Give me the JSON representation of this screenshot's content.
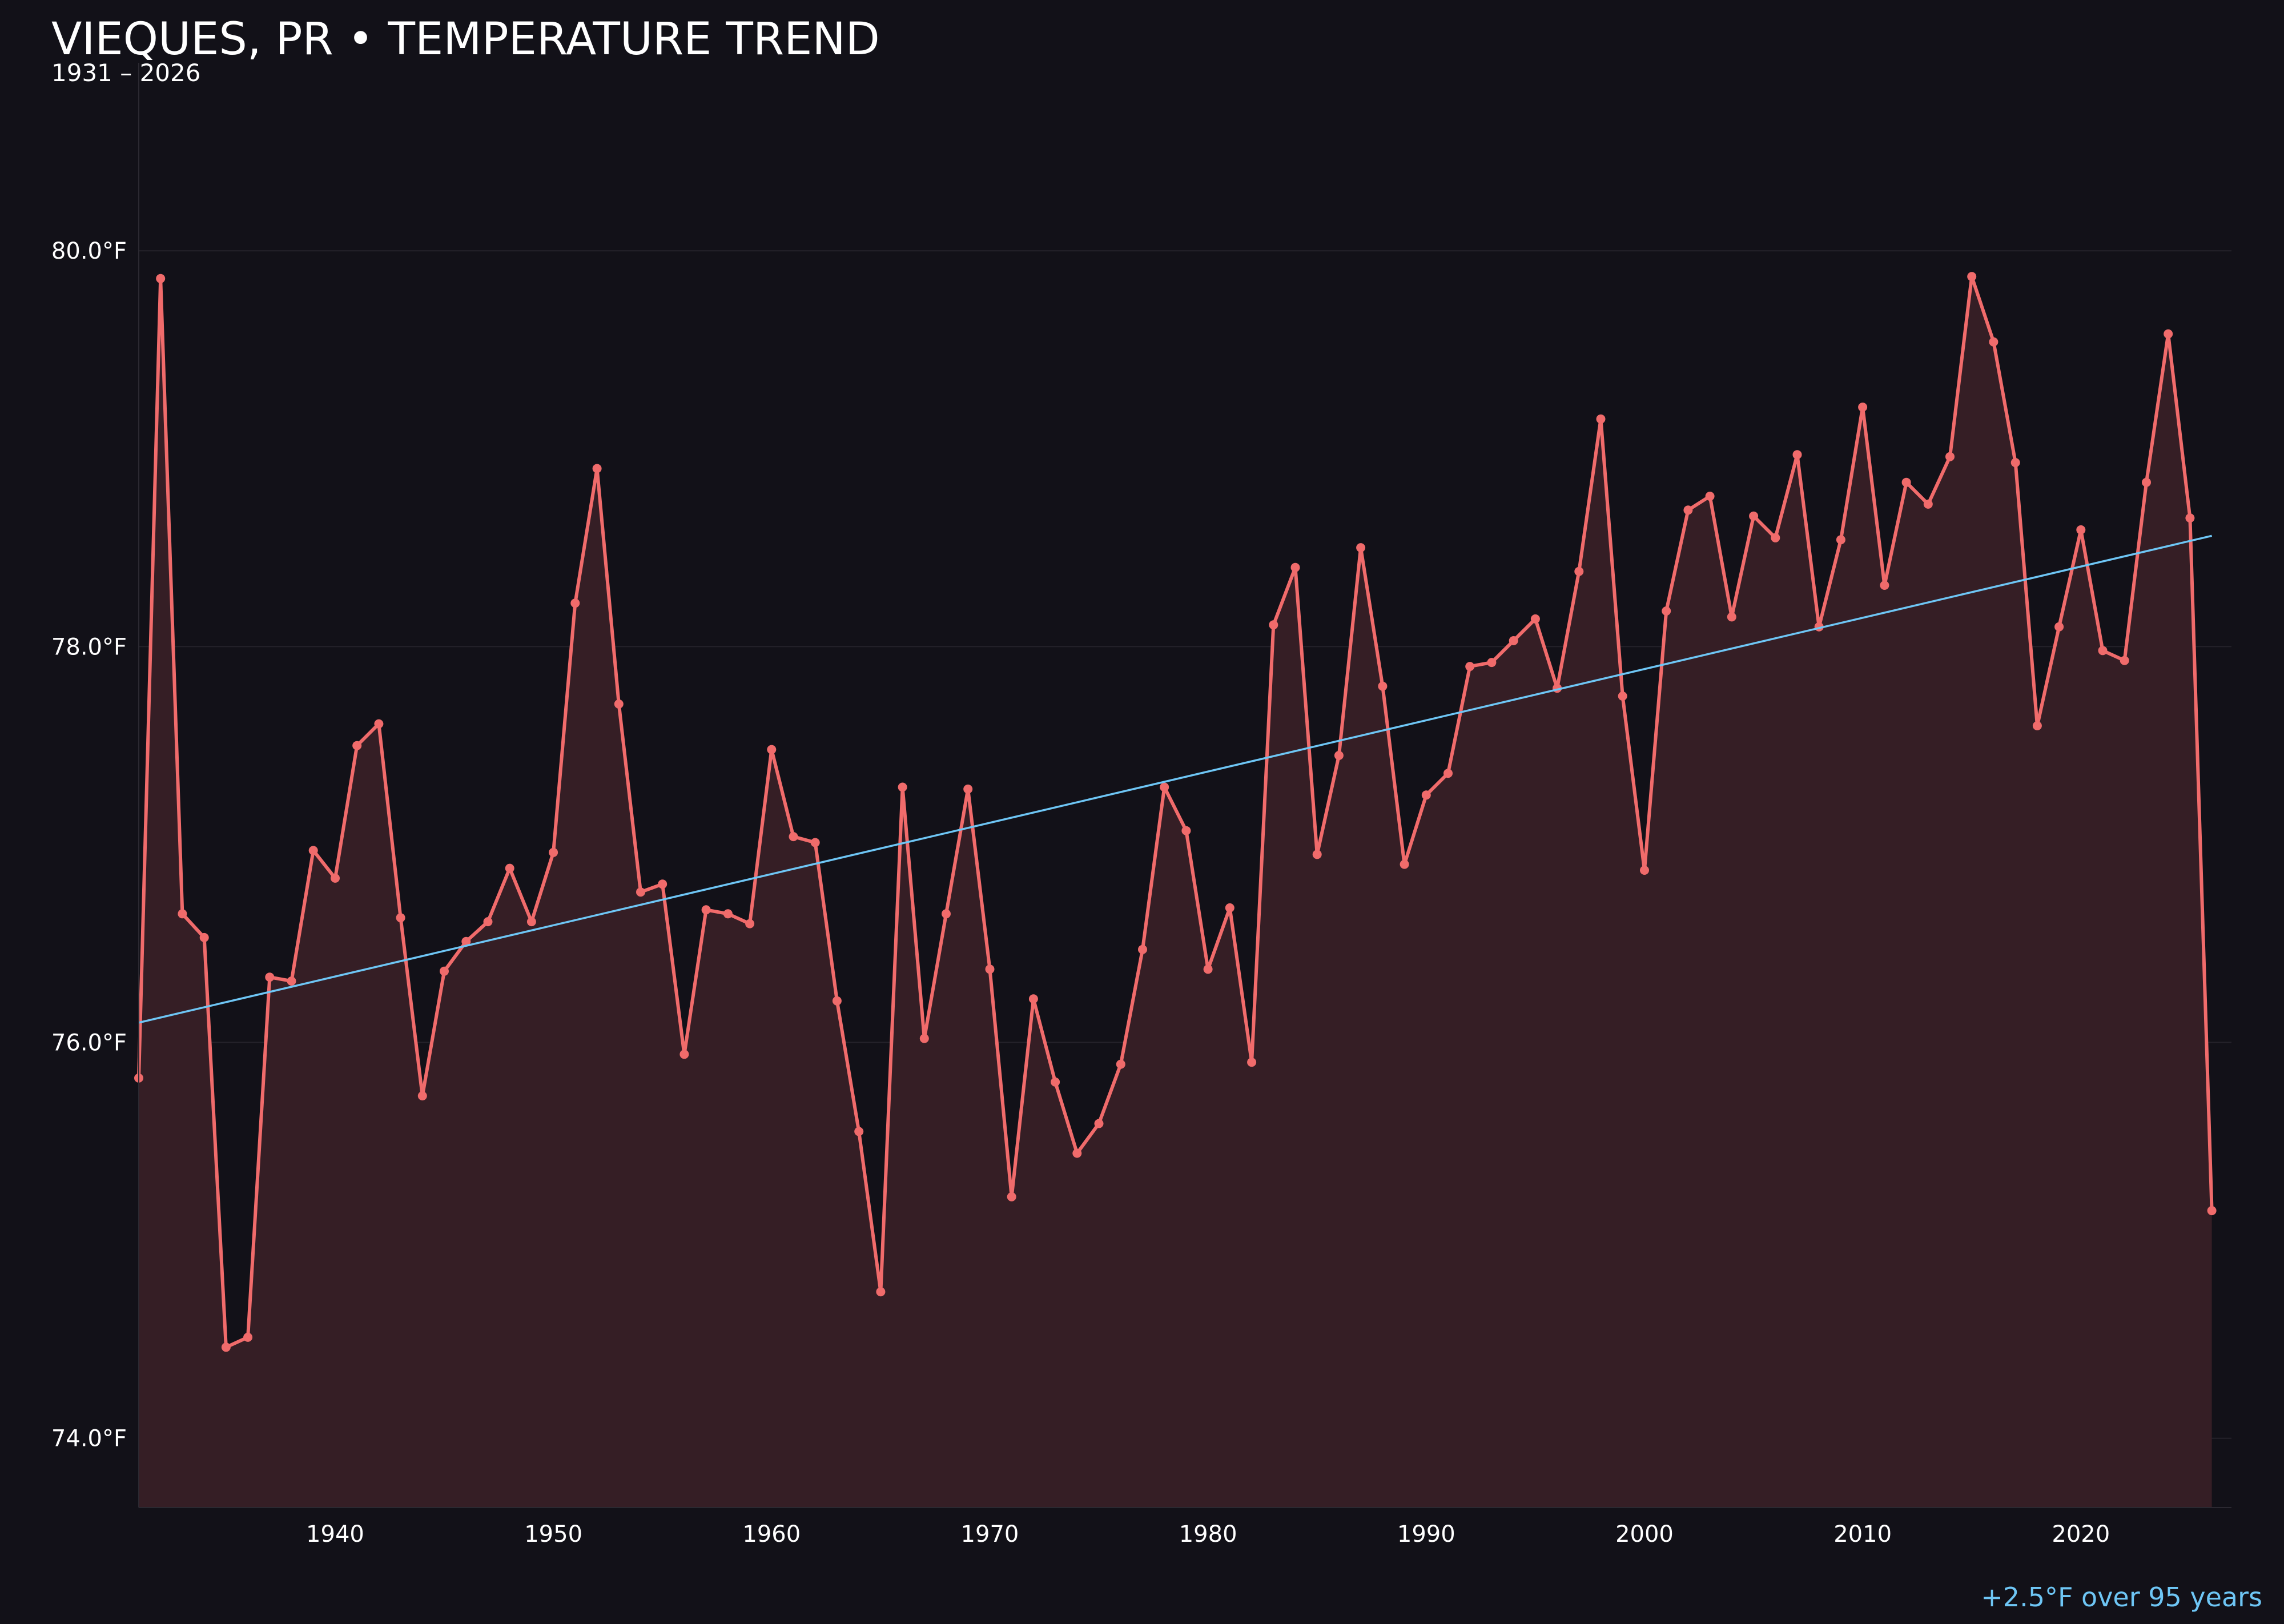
{
  "colors": {
    "background": "#121118",
    "series_line": "#f06b6b",
    "series_fill": "#351e25",
    "trend_line": "#6ec6f5",
    "grid": "#24222a",
    "text": "#ffffff",
    "footer": "#6ec6f5"
  },
  "chart_data": {
    "type": "line",
    "title": "VIEQUES, PR • TEMPERATURE TREND",
    "subtitle": "1931 – 2026",
    "footer": "+2.5°F over 95 years",
    "xlim": [
      1931,
      2026.9
    ],
    "ylim": [
      73.65,
      80.95
    ],
    "x_ticks": [
      1940,
      1950,
      1960,
      1970,
      1980,
      1990,
      2000,
      2010,
      2020
    ],
    "y_ticks": [
      {
        "value": 74,
        "label": "74.0°F"
      },
      {
        "value": 76,
        "label": "76.0°F"
      },
      {
        "value": 78,
        "label": "78.0°F"
      },
      {
        "value": 80,
        "label": "80.0°F"
      }
    ],
    "grid": true,
    "area_fill": true,
    "markers": true,
    "series": [
      {
        "x": [
          1931,
          1932,
          1933,
          1934,
          1935,
          1936,
          1937,
          1938,
          1939,
          1940,
          1941,
          1942,
          1943,
          1944,
          1945,
          1946,
          1947,
          1948,
          1949,
          1950,
          1951,
          1952,
          1953,
          1954,
          1955,
          1956,
          1957,
          1958,
          1959,
          1960,
          1961,
          1962,
          1963,
          1964,
          1965,
          1966,
          1967,
          1968,
          1969,
          1970,
          1971,
          1972,
          1973,
          1974,
          1975,
          1976,
          1977,
          1978,
          1979,
          1980,
          1981,
          1982,
          1983,
          1984,
          1985,
          1986,
          1987,
          1988,
          1989,
          1990,
          1991,
          1992,
          1993,
          1994,
          1995,
          1996,
          1997,
          1998,
          1999,
          2000,
          2001,
          2002,
          2003,
          2004,
          2005,
          2006,
          2007,
          2008,
          2009,
          2010,
          2011,
          2012,
          2013,
          2014,
          2015,
          2016,
          2017,
          2018,
          2019,
          2020,
          2021,
          2022,
          2023,
          2024,
          2025,
          2026
        ],
        "values": [
          75.82,
          79.86,
          76.65,
          76.53,
          74.46,
          74.51,
          76.33,
          76.31,
          76.97,
          76.83,
          77.5,
          77.61,
          76.63,
          75.73,
          76.36,
          76.51,
          76.61,
          76.88,
          76.61,
          76.96,
          78.22,
          78.9,
          77.71,
          76.76,
          76.8,
          75.94,
          76.67,
          76.65,
          76.6,
          77.48,
          77.04,
          77.01,
          76.21,
          75.55,
          74.74,
          77.29,
          76.02,
          76.65,
          77.28,
          76.37,
          75.22,
          76.22,
          75.8,
          75.44,
          75.59,
          75.89,
          76.47,
          77.29,
          77.07,
          76.37,
          76.68,
          75.9,
          78.11,
          78.4,
          76.95,
          77.45,
          78.5,
          77.8,
          76.9,
          77.25,
          77.36,
          77.9,
          77.92,
          78.03,
          78.14,
          77.79,
          78.38,
          79.15,
          77.75,
          76.87,
          78.18,
          78.69,
          78.76,
          78.15,
          78.66,
          78.55,
          78.97,
          78.1,
          78.54,
          79.21,
          78.31,
          78.83,
          78.72,
          78.96,
          79.87,
          79.54,
          78.93,
          77.6,
          78.1,
          78.59,
          77.98,
          77.93,
          78.83,
          79.58,
          78.65,
          75.15
        ]
      }
    ],
    "trend": {
      "x": [
        1931,
        2026
      ],
      "values": [
        76.1,
        78.56
      ]
    }
  }
}
